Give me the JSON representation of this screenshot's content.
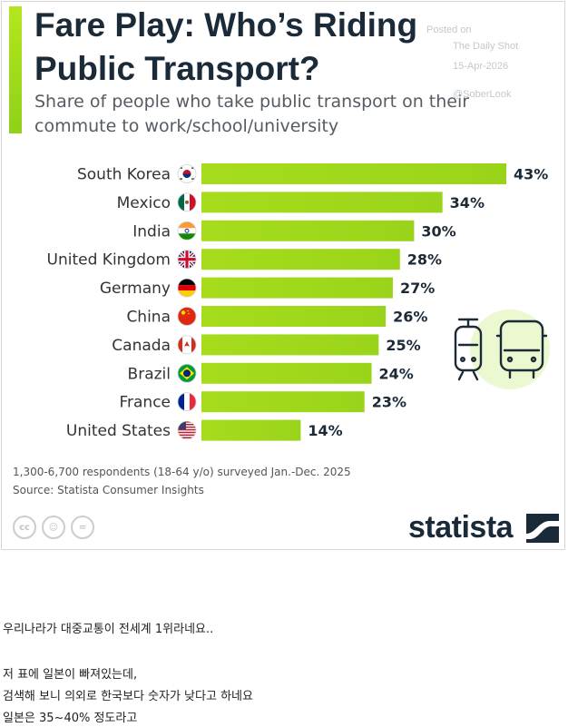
{
  "header": {
    "title": "Fare Play: Who’s Riding Public Transport?",
    "subtitle": "Share of people who take public transport on their commute to work/school/university"
  },
  "watermark": {
    "line1": "Posted on",
    "line2": "The Daily Shot",
    "line3": "15-Apr-2026",
    "line4": "@SoberLook"
  },
  "chart_data": {
    "type": "bar",
    "orientation": "horizontal",
    "title": "Fare Play: Who’s Riding Public Transport?",
    "subtitle": "Share of people who take public transport on their commute to work/school/university",
    "categories": [
      "South Korea",
      "Mexico",
      "India",
      "United Kingdom",
      "Germany",
      "China",
      "Canada",
      "Brazil",
      "France",
      "United States"
    ],
    "values": [
      43,
      34,
      30,
      28,
      27,
      26,
      25,
      24,
      23,
      14
    ],
    "value_labels": [
      "43%",
      "34%",
      "30%",
      "28%",
      "27%",
      "26%",
      "25%",
      "24%",
      "23%",
      "14%"
    ],
    "unit": "%",
    "xlim": [
      0,
      43
    ],
    "grid": false,
    "bar_color": "#a8dc1e"
  },
  "notes": {
    "footnote": "1,300-6,700 respondents (18-64 y/o) surveyed Jan.-Dec. 2025",
    "source": "Source: Statista Consumer Insights"
  },
  "license_icons": [
    "cc-icon",
    "attribution-icon",
    "no-derivatives-icon"
  ],
  "license_glyphs": [
    "cc",
    "☺",
    "="
  ],
  "brand": {
    "name": "statista"
  },
  "comments": {
    "lines": [
      "우리나라가 대중교통이 전세계 1위라네요..",
      "",
      "저 표에 일본이 빠져있는데,",
      "검색해 보니 의외로 한국보다 숫자가 낮다고 하네요",
      "일본은 35~40% 정도라고"
    ]
  }
}
